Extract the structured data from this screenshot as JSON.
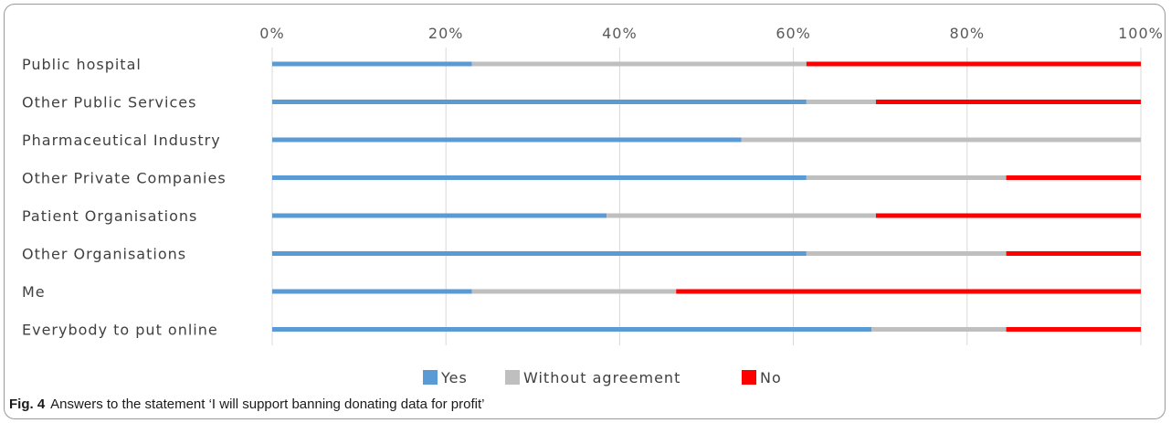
{
  "caption": {
    "label": "Fig. 4",
    "text": "Answers to the statement ‘I will support banning donating data for profit’"
  },
  "chart_data": {
    "type": "bar",
    "orientation": "horizontal",
    "stacked": "100%",
    "title": "",
    "xlabel": "",
    "ylabel": "",
    "xlim": [
      0,
      100
    ],
    "x_ticks": [
      "0%",
      "20%",
      "40%",
      "60%",
      "80%",
      "100%"
    ],
    "x_axis_position": "top",
    "grid": true,
    "legend_position": "bottom",
    "categories": [
      "Public hospital",
      "Other Public Services",
      "Pharmaceutical Industry",
      "Other Private Companies",
      "Patient Organisations",
      "Other Organisations",
      "Me",
      "Everybody to put online"
    ],
    "series": [
      {
        "name": "Yes",
        "color": "#5b9bd5",
        "values": [
          23,
          61.5,
          54,
          61.5,
          38.5,
          61.5,
          23,
          69
        ]
      },
      {
        "name": "Without agreement",
        "color": "#bfbfbf",
        "values": [
          38.5,
          8,
          46,
          23,
          31,
          23,
          23.5,
          15.5
        ]
      },
      {
        "name": "No",
        "color": "#ff0000",
        "values": [
          38.5,
          30.5,
          0,
          15.5,
          30.5,
          15.5,
          53.5,
          15.5
        ]
      }
    ]
  }
}
